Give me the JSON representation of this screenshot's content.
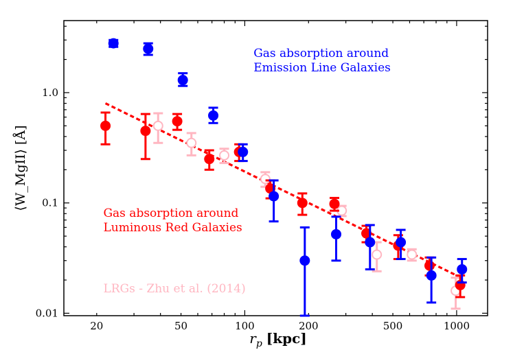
{
  "chart_data": {
    "type": "scatter",
    "x_scale": "log",
    "y_scale": "log",
    "xlim": [
      14,
      1400
    ],
    "ylim": [
      0.0095,
      4.5
    ],
    "xlabel_var": "r",
    "xlabel_sub": "p",
    "xlabel_unit": "[kpc]",
    "ylabel": "⟨W_MgII⟩ [Å]",
    "x_ticks": [
      20,
      50,
      100,
      200,
      500,
      1000
    ],
    "x_tick_labels": [
      "20",
      "50",
      "100",
      "200",
      "500",
      "1000"
    ],
    "y_ticks": [
      0.01,
      0.1,
      1.0
    ],
    "y_tick_labels": [
      "0.01",
      "0.1",
      "1.0"
    ],
    "series": [
      {
        "name": "Gas absorption around Emission Line Galaxies",
        "color": "#0000ff",
        "marker": "filled-circle",
        "points": [
          {
            "x": 24,
            "y": 2.8,
            "ylo": 2.6,
            "yhi": 3.0
          },
          {
            "x": 35,
            "y": 2.5,
            "ylo": 2.2,
            "yhi": 2.8
          },
          {
            "x": 51,
            "y": 1.3,
            "ylo": 1.15,
            "yhi": 1.5
          },
          {
            "x": 71,
            "y": 0.62,
            "ylo": 0.53,
            "yhi": 0.73
          },
          {
            "x": 98,
            "y": 0.29,
            "ylo": 0.24,
            "yhi": 0.34
          },
          {
            "x": 137,
            "y": 0.115,
            "ylo": 0.068,
            "yhi": 0.16
          },
          {
            "x": 192,
            "y": 0.03,
            "ylo": 0.0095,
            "yhi": 0.06
          },
          {
            "x": 270,
            "y": 0.052,
            "ylo": 0.03,
            "yhi": 0.075
          },
          {
            "x": 390,
            "y": 0.044,
            "ylo": 0.025,
            "yhi": 0.063
          },
          {
            "x": 545,
            "y": 0.044,
            "ylo": 0.031,
            "yhi": 0.057
          },
          {
            "x": 760,
            "y": 0.022,
            "ylo": 0.0125,
            "yhi": 0.032
          },
          {
            "x": 1060,
            "y": 0.025,
            "ylo": 0.019,
            "yhi": 0.031
          }
        ]
      },
      {
        "name": "Gas absorption around Luminous Red Galaxies",
        "color": "#ff0000",
        "marker": "filled-circle",
        "points": [
          {
            "x": 22,
            "y": 0.5,
            "ylo": 0.34,
            "yhi": 0.66
          },
          {
            "x": 34,
            "y": 0.45,
            "ylo": 0.25,
            "yhi": 0.64
          },
          {
            "x": 48,
            "y": 0.55,
            "ylo": 0.46,
            "yhi": 0.64
          },
          {
            "x": 68,
            "y": 0.25,
            "ylo": 0.2,
            "yhi": 0.3
          },
          {
            "x": 94,
            "y": 0.29,
            "ylo": 0.24,
            "yhi": 0.34
          },
          {
            "x": 132,
            "y": 0.135,
            "ylo": 0.11,
            "yhi": 0.16
          },
          {
            "x": 187,
            "y": 0.1,
            "ylo": 0.078,
            "yhi": 0.122
          },
          {
            "x": 265,
            "y": 0.098,
            "ylo": 0.085,
            "yhi": 0.111
          },
          {
            "x": 375,
            "y": 0.053,
            "ylo": 0.044,
            "yhi": 0.062
          },
          {
            "x": 530,
            "y": 0.041,
            "ylo": 0.031,
            "yhi": 0.051
          },
          {
            "x": 745,
            "y": 0.027,
            "ylo": 0.022,
            "yhi": 0.032
          },
          {
            "x": 1040,
            "y": 0.018,
            "ylo": 0.014,
            "yhi": 0.022
          }
        ]
      },
      {
        "name": "LRGs - Zhu et al. (2014)",
        "color": "#ffb6c1",
        "marker": "open-circle",
        "points": [
          {
            "x": 39,
            "y": 0.5,
            "ylo": 0.35,
            "yhi": 0.65
          },
          {
            "x": 56,
            "y": 0.35,
            "ylo": 0.27,
            "yhi": 0.43
          },
          {
            "x": 80,
            "y": 0.27,
            "ylo": 0.23,
            "yhi": 0.31
          },
          {
            "x": 125,
            "y": 0.165,
            "ylo": 0.14,
            "yhi": 0.19
          },
          {
            "x": 287,
            "y": 0.085,
            "ylo": 0.076,
            "yhi": 0.094
          },
          {
            "x": 420,
            "y": 0.034,
            "ylo": 0.024,
            "yhi": 0.044
          },
          {
            "x": 615,
            "y": 0.034,
            "ylo": 0.03,
            "yhi": 0.038
          },
          {
            "x": 990,
            "y": 0.016,
            "ylo": 0.011,
            "yhi": 0.021
          }
        ]
      }
    ],
    "fit_line": {
      "color": "#ff0000",
      "style": "dashed",
      "x": [
        22,
        1050
      ],
      "y": [
        0.8,
        0.021
      ]
    },
    "annotations": [
      {
        "lines": [
          "Gas absorption around",
          "Emission Line Galaxies"
        ],
        "color": "#0000ff",
        "anchor": {
          "x": 110,
          "y": 2.1
        }
      },
      {
        "lines": [
          "Gas absorption around",
          "Luminous Red Galaxies"
        ],
        "color": "#ff0000",
        "anchor": {
          "x": 21.5,
          "y": 0.075
        }
      },
      {
        "lines": [
          "LRGs - Zhu et al. (2014)"
        ],
        "color": "#ffb6c1",
        "anchor": {
          "x": 21.5,
          "y": 0.0155
        }
      }
    ]
  }
}
